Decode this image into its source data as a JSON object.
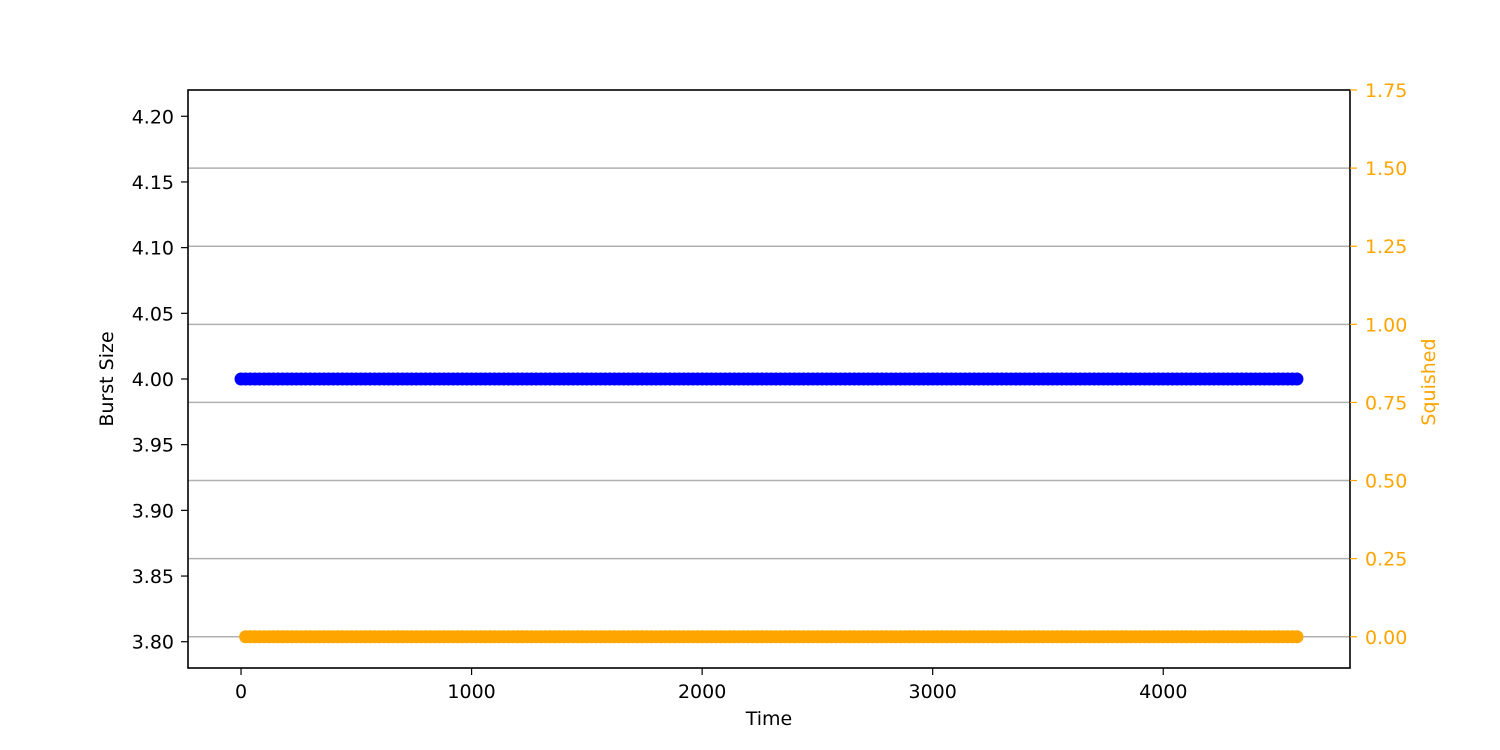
{
  "chart_data": {
    "type": "scatter",
    "title": "",
    "xlabel": "Time",
    "ylabel": "Burst Size",
    "y2label": "Squished",
    "xlim": [
      -230,
      4810
    ],
    "ylim": [
      3.78,
      4.22
    ],
    "y2lim": [
      -0.1,
      1.75
    ],
    "x_ticks": [
      0,
      1000,
      2000,
      3000,
      4000
    ],
    "y_ticks": [
      "3.80",
      "3.85",
      "3.90",
      "3.95",
      "4.00",
      "4.05",
      "4.10",
      "4.15",
      "4.20"
    ],
    "y2_ticks": [
      "0.00",
      "0.25",
      "0.50",
      "0.75",
      "1.00",
      "1.25",
      "1.50",
      "1.75"
    ],
    "grid": "horizontal, right axis",
    "series": [
      {
        "axis": "left",
        "color": "#0000ff",
        "x_start": 0,
        "x_end": 4590,
        "x_step": 20,
        "value": 4.0
      },
      {
        "axis": "right",
        "color": "#ffa500",
        "x_start": 20,
        "x_end": 4590,
        "x_step": 20,
        "value": 0.0
      }
    ],
    "colors": {
      "axis": "#000000",
      "right_axis": "#ffa500",
      "grid": "#b0b0b0"
    }
  }
}
